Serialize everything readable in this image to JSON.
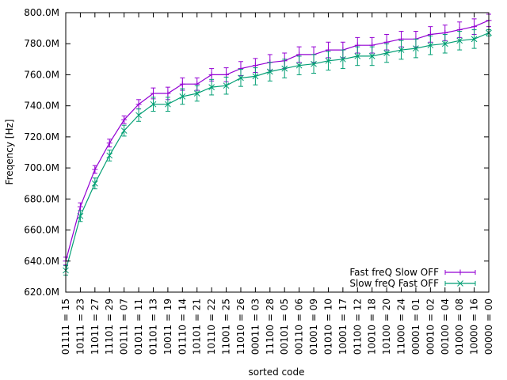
{
  "chart_data": {
    "type": "line",
    "xlabel": "sorted code",
    "ylabel": "Freqency [Hz]",
    "ylim": [
      620,
      800
    ],
    "yticks": [
      "620.0M",
      "640.0M",
      "660.0M",
      "680.0M",
      "700.0M",
      "720.0M",
      "740.0M",
      "760.0M",
      "780.0M",
      "800.0M"
    ],
    "yunit": "MHz",
    "grid": false,
    "legend": "bottom-right",
    "categories": [
      "01111 = 15",
      "10111 = 23",
      "11011 = 27",
      "11101 = 29",
      "00111 = 07",
      "01011 = 11",
      "01101 = 13",
      "10011 = 19",
      "01110 = 14",
      "10101 = 21",
      "10110 = 22",
      "11001 = 25",
      "11010 = 26",
      "00011 = 03",
      "11100 = 28",
      "00101 = 05",
      "00110 = 06",
      "01001 = 09",
      "01010 = 10",
      "10001 = 17",
      "01100 = 12",
      "10010 = 18",
      "10100 = 20",
      "11000 = 24",
      "00001 = 01",
      "00010 = 02",
      "00100 = 04",
      "01000 = 08",
      "10000 = 16",
      "00000 = 00"
    ],
    "series": [
      {
        "name": "Fast freQ Slow OFF",
        "color": "#9400d3",
        "marker": "plus",
        "values": [
          640,
          675,
          699,
          716,
          731,
          741,
          748,
          748,
          754,
          754,
          760,
          760,
          764,
          766,
          768,
          769,
          773,
          773,
          776,
          776,
          779,
          779,
          781,
          783,
          783,
          786,
          787,
          789,
          791,
          795
        ],
        "errors": [
          2.5,
          2.5,
          2.5,
          2.5,
          2.5,
          3,
          3.5,
          4,
          4,
          4,
          4,
          4.5,
          4.5,
          4.5,
          5,
          5,
          5,
          5,
          5,
          5,
          5,
          5,
          5,
          5,
          5,
          5,
          5,
          5,
          5,
          4
        ]
      },
      {
        "name": "Slow freQ Fast OFF",
        "color": "#009e73",
        "marker": "cross",
        "values": [
          634,
          669,
          690,
          708,
          724,
          734,
          741,
          741,
          746,
          748,
          752,
          753,
          758,
          759,
          762,
          764,
          766,
          767,
          769,
          770,
          772,
          772,
          774,
          776,
          777,
          779,
          780,
          782,
          783,
          787
        ],
        "errors": [
          3,
          3.5,
          3.5,
          3.5,
          3.5,
          4,
          4.5,
          4.5,
          5,
          5,
          5,
          5.5,
          5.5,
          5.5,
          6,
          6,
          6,
          6,
          6,
          6,
          6,
          6,
          6,
          6,
          6,
          6,
          6,
          6,
          6,
          2
        ]
      }
    ]
  }
}
